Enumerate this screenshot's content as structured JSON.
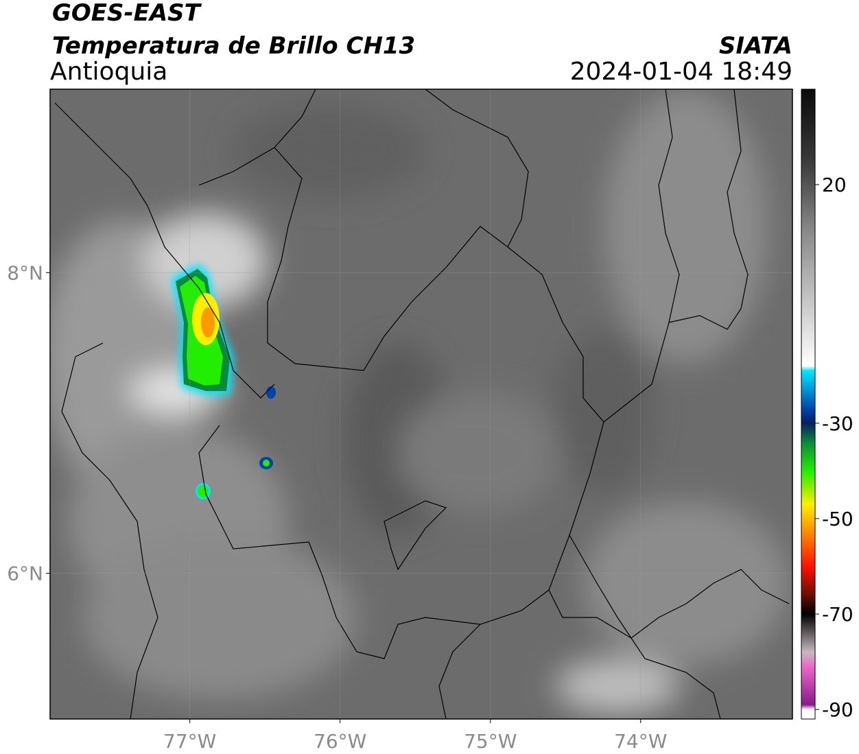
{
  "chart_data": {
    "type": "map",
    "title": "GOES-EAST",
    "subtitle": "Temperatura de Brillo CH13",
    "region": "Antioquia",
    "source": "SIATA",
    "datetime": "2024-01-04 18:49",
    "xlim": [
      -77.93,
      -72.99
    ],
    "ylim": [
      5.03,
      9.22
    ],
    "xticks": [
      {
        "value": -77,
        "label": "77°W"
      },
      {
        "value": -76,
        "label": "76°W"
      },
      {
        "value": -75,
        "label": "75°W"
      },
      {
        "value": -74,
        "label": "74°W"
      }
    ],
    "yticks": [
      {
        "value": 8,
        "label": "8°N"
      },
      {
        "value": 6,
        "label": "6°N"
      }
    ],
    "grid": true,
    "colorbar": {
      "lim": [
        -92,
        40
      ],
      "ticks": [
        20,
        -30,
        -50,
        -70,
        -90
      ],
      "scale": [
        {
          "value": 40,
          "color": "#0a0a0a"
        },
        {
          "value": 25,
          "color": "#3a3a3a"
        },
        {
          "value": 10,
          "color": "#8a8a8a"
        },
        {
          "value": -18,
          "color": "#ffffff"
        },
        {
          "value": -19,
          "color": "#00e5ff"
        },
        {
          "value": -27,
          "color": "#0044aa"
        },
        {
          "value": -30,
          "color": "#06205e"
        },
        {
          "value": -34,
          "color": "#0a8a3a"
        },
        {
          "value": -40,
          "color": "#22ee00"
        },
        {
          "value": -47,
          "color": "#ffee00"
        },
        {
          "value": -52,
          "color": "#ff9900"
        },
        {
          "value": -60,
          "color": "#ff1100"
        },
        {
          "value": -66,
          "color": "#661000"
        },
        {
          "value": -70,
          "color": "#000000"
        },
        {
          "value": -78,
          "color": "#c8b8c0"
        },
        {
          "value": -81,
          "color": "#ee66cc"
        },
        {
          "value": -89,
          "color": "#8a1a8a"
        },
        {
          "value": -90,
          "color": "#ffffff"
        }
      ]
    }
  }
}
